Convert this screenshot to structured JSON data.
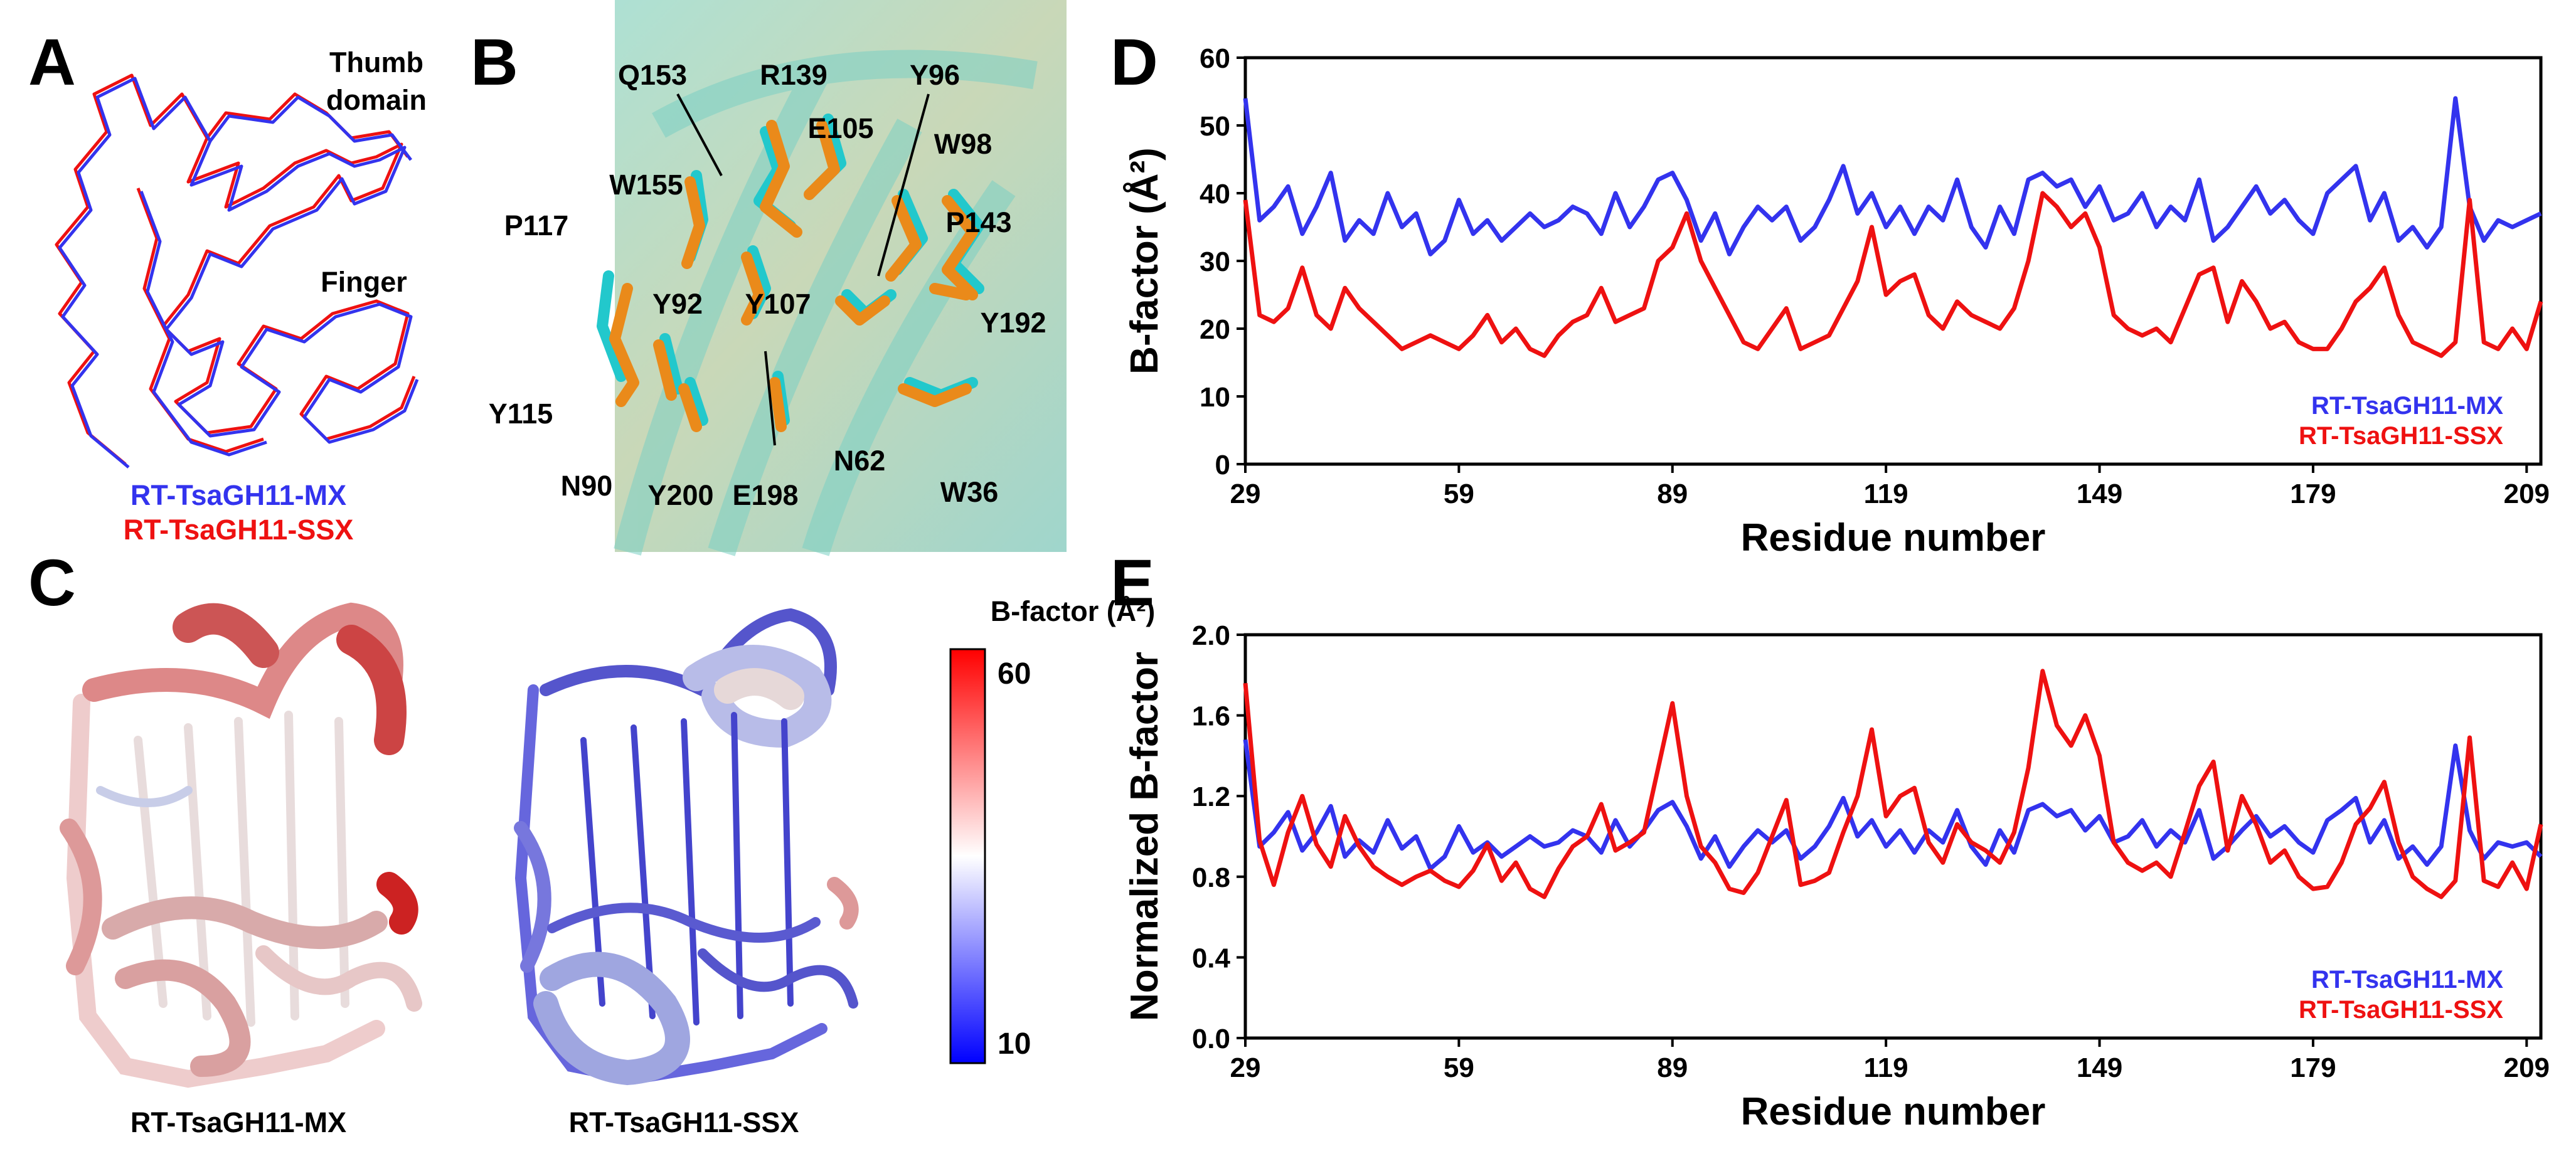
{
  "panels": {
    "A": {
      "letter": "A",
      "labels": {
        "thumb": "Thumb",
        "domain": "domain",
        "finger": "Finger"
      },
      "legend": [
        "RT-TsaGH11-MX",
        "RT-TsaGH11-SSX"
      ]
    },
    "B": {
      "letter": "B",
      "residues": [
        "Q153",
        "R139",
        "Y96",
        "E105",
        "W98",
        "W155",
        "P117",
        "P143",
        "Y92",
        "Y107",
        "Y192",
        "Y115",
        "N90",
        "Y200",
        "E198",
        "N62",
        "W36"
      ]
    },
    "C": {
      "letter": "C",
      "captions": [
        "RT-TsaGH11-MX",
        "RT-TsaGH11-SSX"
      ],
      "colorbar": {
        "title": "B-factor (Å²)",
        "max": "60",
        "min": "10"
      }
    },
    "D": {
      "letter": "D"
    },
    "E": {
      "letter": "E"
    }
  },
  "colors": {
    "mx": "#3333ee",
    "ssx": "#ee1111",
    "cyan": "#22c8cc",
    "orange": "#ea8a1a"
  },
  "chart_data": [
    {
      "id": "D",
      "type": "line",
      "ylabel": "B-factor (Å²)",
      "xlabel": "Residue number",
      "xlim": [
        29,
        211
      ],
      "ylim": [
        0,
        60
      ],
      "xticks": [
        29,
        59,
        89,
        119,
        149,
        179,
        209
      ],
      "yticks": [
        0,
        10,
        20,
        30,
        40,
        50,
        60
      ],
      "ytick_labels": [
        "0",
        "10",
        "20",
        "30",
        "40",
        "50",
        "60"
      ],
      "legend": [
        "RT-TsaGH11-MX",
        "RT-TsaGH11-SSX"
      ],
      "series": [
        {
          "name": "RT-TsaGH11-MX",
          "color": "#3333ee",
          "x": [
            29,
            31,
            33,
            35,
            37,
            39,
            41,
            43,
            45,
            47,
            49,
            51,
            53,
            55,
            57,
            59,
            61,
            63,
            65,
            67,
            69,
            71,
            73,
            75,
            77,
            79,
            81,
            83,
            85,
            87,
            89,
            91,
            93,
            95,
            97,
            99,
            101,
            103,
            105,
            107,
            109,
            111,
            113,
            115,
            117,
            119,
            121,
            123,
            125,
            127,
            129,
            131,
            133,
            135,
            137,
            139,
            141,
            143,
            145,
            147,
            149,
            151,
            153,
            155,
            157,
            159,
            161,
            163,
            165,
            167,
            169,
            171,
            173,
            175,
            177,
            179,
            181,
            183,
            185,
            187,
            189,
            191,
            193,
            195,
            197,
            199,
            201,
            203,
            205,
            207,
            209,
            211
          ],
          "values": [
            54,
            36,
            38,
            41,
            34,
            38,
            43,
            33,
            36,
            34,
            40,
            35,
            37,
            31,
            33,
            39,
            34,
            36,
            33,
            35,
            37,
            35,
            36,
            38,
            37,
            34,
            40,
            35,
            38,
            42,
            43,
            39,
            33,
            37,
            31,
            35,
            38,
            36,
            38,
            33,
            35,
            39,
            44,
            37,
            40,
            35,
            38,
            34,
            38,
            36,
            42,
            35,
            32,
            38,
            34,
            42,
            43,
            41,
            42,
            38,
            41,
            36,
            37,
            40,
            35,
            38,
            36,
            42,
            33,
            35,
            38,
            41,
            37,
            39,
            36,
            34,
            40,
            42,
            44,
            36,
            40,
            33,
            35,
            32,
            35,
            54,
            38,
            33,
            36,
            35,
            36,
            37
          ]
        },
        {
          "name": "RT-TsaGH11-SSX",
          "color": "#ee1111",
          "x": [
            29,
            31,
            33,
            35,
            37,
            39,
            41,
            43,
            45,
            47,
            49,
            51,
            53,
            55,
            57,
            59,
            61,
            63,
            65,
            67,
            69,
            71,
            73,
            75,
            77,
            79,
            81,
            83,
            85,
            87,
            89,
            91,
            93,
            95,
            97,
            99,
            101,
            103,
            105,
            107,
            109,
            111,
            113,
            115,
            117,
            119,
            121,
            123,
            125,
            127,
            129,
            131,
            133,
            135,
            137,
            139,
            141,
            143,
            145,
            147,
            149,
            151,
            153,
            155,
            157,
            159,
            161,
            163,
            165,
            167,
            169,
            171,
            173,
            175,
            177,
            179,
            181,
            183,
            185,
            187,
            189,
            191,
            193,
            195,
            197,
            199,
            201,
            203,
            205,
            207,
            209,
            211
          ],
          "values": [
            39,
            22,
            21,
            23,
            29,
            22,
            20,
            26,
            23,
            21,
            19,
            17,
            18,
            19,
            18,
            17,
            19,
            22,
            18,
            20,
            17,
            16,
            19,
            21,
            22,
            26,
            21,
            22,
            23,
            30,
            32,
            37,
            30,
            26,
            22,
            18,
            17,
            20,
            23,
            17,
            18,
            19,
            23,
            27,
            35,
            25,
            27,
            28,
            22,
            20,
            24,
            22,
            21,
            20,
            23,
            30,
            40,
            38,
            35,
            37,
            32,
            22,
            20,
            19,
            20,
            18,
            23,
            28,
            29,
            21,
            27,
            24,
            20,
            21,
            18,
            17,
            17,
            20,
            24,
            26,
            29,
            22,
            18,
            17,
            16,
            18,
            39,
            18,
            17,
            20,
            17,
            24
          ]
        }
      ]
    },
    {
      "id": "E",
      "type": "line",
      "ylabel": "Normalized B-factor",
      "xlabel": "Residue number",
      "xlim": [
        29,
        211
      ],
      "ylim": [
        0,
        2.0
      ],
      "xticks": [
        29,
        59,
        89,
        119,
        149,
        179,
        209
      ],
      "yticks": [
        0,
        0.4,
        0.8,
        1.2,
        1.6,
        2.0
      ],
      "ytick_labels": [
        "0.0",
        "0.4",
        "0.8",
        "1.2",
        "1.6",
        "2.0"
      ],
      "legend": [
        "RT-TsaGH11-MX",
        "RT-TsaGH11-SSX"
      ],
      "series": [
        {
          "name": "RT-TsaGH11-MX",
          "color": "#3333ee",
          "x": [
            29,
            31,
            33,
            35,
            37,
            39,
            41,
            43,
            45,
            47,
            49,
            51,
            53,
            55,
            57,
            59,
            61,
            63,
            65,
            67,
            69,
            71,
            73,
            75,
            77,
            79,
            81,
            83,
            85,
            87,
            89,
            91,
            93,
            95,
            97,
            99,
            101,
            103,
            105,
            107,
            109,
            111,
            113,
            115,
            117,
            119,
            121,
            123,
            125,
            127,
            129,
            131,
            133,
            135,
            137,
            139,
            141,
            143,
            145,
            147,
            149,
            151,
            153,
            155,
            157,
            159,
            161,
            163,
            165,
            167,
            169,
            171,
            173,
            175,
            177,
            179,
            181,
            183,
            185,
            187,
            189,
            191,
            193,
            195,
            197,
            199,
            201,
            203,
            205,
            207,
            209,
            211
          ],
          "values": [
            1.48,
            0.95,
            1.02,
            1.12,
            0.93,
            1.02,
            1.15,
            0.9,
            0.98,
            0.92,
            1.08,
            0.94,
            1.0,
            0.84,
            0.9,
            1.05,
            0.92,
            0.97,
            0.9,
            0.95,
            1.0,
            0.95,
            0.97,
            1.03,
            1.0,
            0.92,
            1.08,
            0.95,
            1.03,
            1.13,
            1.17,
            1.05,
            0.89,
            1.0,
            0.85,
            0.95,
            1.03,
            0.97,
            1.03,
            0.89,
            0.95,
            1.05,
            1.19,
            1.0,
            1.08,
            0.95,
            1.03,
            0.92,
            1.03,
            0.97,
            1.13,
            0.95,
            0.86,
            1.03,
            0.92,
            1.13,
            1.16,
            1.1,
            1.13,
            1.03,
            1.1,
            0.97,
            1.0,
            1.08,
            0.95,
            1.03,
            0.97,
            1.13,
            0.89,
            0.95,
            1.03,
            1.1,
            1.0,
            1.05,
            0.97,
            0.92,
            1.08,
            1.13,
            1.19,
            0.97,
            1.08,
            0.89,
            0.95,
            0.86,
            0.95,
            1.45,
            1.03,
            0.89,
            0.97,
            0.95,
            0.97,
            0.9
          ]
        },
        {
          "name": "RT-TsaGH11-SSX",
          "color": "#ee1111",
          "x": [
            29,
            31,
            33,
            35,
            37,
            39,
            41,
            43,
            45,
            47,
            49,
            51,
            53,
            55,
            57,
            59,
            61,
            63,
            65,
            67,
            69,
            71,
            73,
            75,
            77,
            79,
            81,
            83,
            85,
            87,
            89,
            91,
            93,
            95,
            97,
            99,
            101,
            103,
            105,
            107,
            109,
            111,
            113,
            115,
            117,
            119,
            121,
            123,
            125,
            127,
            129,
            131,
            133,
            135,
            137,
            139,
            141,
            143,
            145,
            147,
            149,
            151,
            153,
            155,
            157,
            159,
            161,
            163,
            165,
            167,
            169,
            171,
            173,
            175,
            177,
            179,
            181,
            183,
            185,
            187,
            189,
            191,
            193,
            195,
            197,
            199,
            201,
            203,
            205,
            207,
            209,
            211
          ],
          "values": [
            1.76,
            0.98,
            0.76,
            1.02,
            1.2,
            0.96,
            0.85,
            1.1,
            0.95,
            0.85,
            0.8,
            0.76,
            0.8,
            0.83,
            0.78,
            0.75,
            0.83,
            0.96,
            0.78,
            0.87,
            0.74,
            0.7,
            0.84,
            0.95,
            1.0,
            1.16,
            0.93,
            0.97,
            1.02,
            1.34,
            1.66,
            1.2,
            0.95,
            0.87,
            0.74,
            0.72,
            0.82,
            1.0,
            1.18,
            0.76,
            0.78,
            0.82,
            1.02,
            1.2,
            1.53,
            1.1,
            1.2,
            1.24,
            0.97,
            0.87,
            1.06,
            0.97,
            0.93,
            0.87,
            1.02,
            1.34,
            1.82,
            1.55,
            1.45,
            1.6,
            1.4,
            0.97,
            0.87,
            0.83,
            0.87,
            0.8,
            1.02,
            1.25,
            1.37,
            0.93,
            1.2,
            1.06,
            0.87,
            0.93,
            0.8,
            0.74,
            0.75,
            0.87,
            1.06,
            1.14,
            1.27,
            0.97,
            0.8,
            0.74,
            0.7,
            0.78,
            1.49,
            0.78,
            0.75,
            0.87,
            0.74,
            1.06
          ]
        }
      ]
    }
  ]
}
